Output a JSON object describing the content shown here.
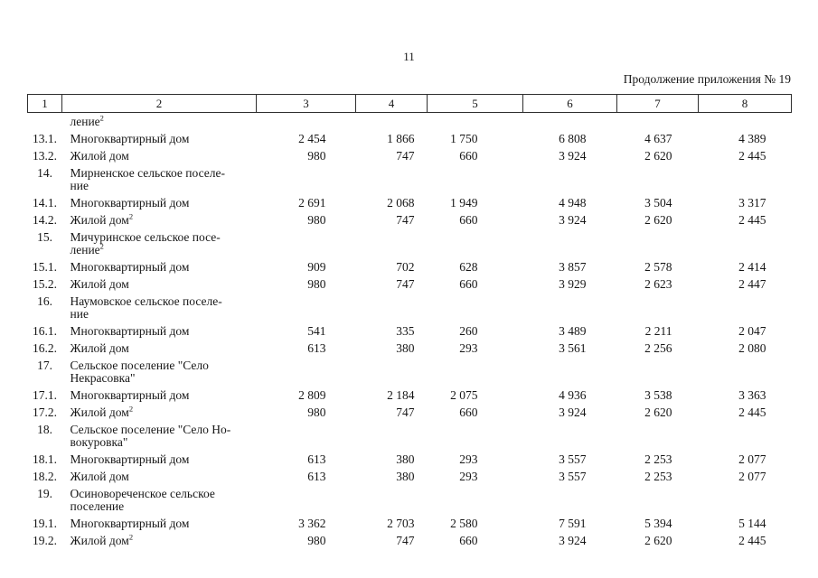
{
  "page": {
    "number": "11",
    "continuation_label": "Продолжение приложения № 19"
  },
  "table": {
    "column_numbers": [
      "1",
      "2",
      "3",
      "4",
      "5",
      "6",
      "7",
      "8"
    ],
    "rows": [
      {
        "num": "",
        "lines": [
          {
            "text": "ление",
            "sup": "2"
          }
        ],
        "values": [
          "",
          "",
          "",
          "",
          "",
          ""
        ]
      },
      {
        "num": "13.1.",
        "lines": [
          {
            "text": "Многоквартирный дом",
            "sup": ""
          }
        ],
        "values": [
          "2 454",
          "1 866",
          "1 750",
          "6 808",
          "4 637",
          "4 389"
        ]
      },
      {
        "num": "13.2.",
        "lines": [
          {
            "text": "Жилой дом",
            "sup": ""
          }
        ],
        "values": [
          "980",
          "747",
          "660",
          "3 924",
          "2 620",
          "2 445"
        ]
      },
      {
        "num": "14.",
        "lines": [
          {
            "text": "Мирненское сельское поселе-",
            "sup": ""
          },
          {
            "text": "ние",
            "sup": ""
          }
        ],
        "values": [
          "",
          "",
          "",
          "",
          "",
          ""
        ]
      },
      {
        "num": "14.1.",
        "lines": [
          {
            "text": "Многоквартирный дом",
            "sup": ""
          }
        ],
        "values": [
          "2 691",
          "2 068",
          "1 949",
          "4 948",
          "3 504",
          "3 317"
        ]
      },
      {
        "num": "14.2.",
        "lines": [
          {
            "text": "Жилой дом",
            "sup": "2"
          }
        ],
        "values": [
          "980",
          "747",
          "660",
          "3 924",
          "2 620",
          "2 445"
        ]
      },
      {
        "num": "15.",
        "lines": [
          {
            "text": "Мичуринское сельское посе-",
            "sup": ""
          },
          {
            "text": "ление",
            "sup": "2"
          }
        ],
        "values": [
          "",
          "",
          "",
          "",
          "",
          ""
        ]
      },
      {
        "num": "15.1.",
        "lines": [
          {
            "text": "Многоквартирный дом",
            "sup": ""
          }
        ],
        "values": [
          "909",
          "702",
          "628",
          "3 857",
          "2 578",
          "2 414"
        ]
      },
      {
        "num": "15.2.",
        "lines": [
          {
            "text": "Жилой дом",
            "sup": ""
          }
        ],
        "values": [
          "980",
          "747",
          "660",
          "3 929",
          "2 623",
          "2 447"
        ]
      },
      {
        "num": "16.",
        "lines": [
          {
            "text": "Наумовское сельское поселе-",
            "sup": ""
          },
          {
            "text": "ние",
            "sup": ""
          }
        ],
        "values": [
          "",
          "",
          "",
          "",
          "",
          ""
        ]
      },
      {
        "num": "16.1.",
        "lines": [
          {
            "text": "Многоквартирный дом",
            "sup": ""
          }
        ],
        "values": [
          "541",
          "335",
          "260",
          "3 489",
          "2 211",
          "2 047"
        ]
      },
      {
        "num": "16.2.",
        "lines": [
          {
            "text": "Жилой дом",
            "sup": ""
          }
        ],
        "values": [
          "613",
          "380",
          "293",
          "3 561",
          "2 256",
          "2 080"
        ]
      },
      {
        "num": "17.",
        "lines": [
          {
            "text": "Сельское поселение \"Село",
            "sup": ""
          },
          {
            "text": "Некрасовка\"",
            "sup": ""
          }
        ],
        "values": [
          "",
          "",
          "",
          "",
          "",
          ""
        ]
      },
      {
        "num": "17.1.",
        "lines": [
          {
            "text": "Многоквартирный дом",
            "sup": ""
          }
        ],
        "values": [
          "2 809",
          "2 184",
          "2 075",
          "4 936",
          "3 538",
          "3 363"
        ]
      },
      {
        "num": "17.2.",
        "lines": [
          {
            "text": "Жилой дом",
            "sup": "2"
          }
        ],
        "values": [
          "980",
          "747",
          "660",
          "3 924",
          "2 620",
          "2 445"
        ]
      },
      {
        "num": "18.",
        "lines": [
          {
            "text": "Сельское поселение \"Село Но-",
            "sup": ""
          },
          {
            "text": "вокуровка\"",
            "sup": ""
          }
        ],
        "values": [
          "",
          "",
          "",
          "",
          "",
          ""
        ]
      },
      {
        "num": "18.1.",
        "lines": [
          {
            "text": "Многоквартирный дом",
            "sup": ""
          }
        ],
        "values": [
          "613",
          "380",
          "293",
          "3 557",
          "2 253",
          "2 077"
        ]
      },
      {
        "num": "18.2.",
        "lines": [
          {
            "text": "Жилой дом",
            "sup": ""
          }
        ],
        "values": [
          "613",
          "380",
          "293",
          "3 557",
          "2 253",
          "2 077"
        ]
      },
      {
        "num": "19.",
        "lines": [
          {
            "text": "Осиновореченское сельское",
            "sup": ""
          },
          {
            "text": "поселение",
            "sup": ""
          }
        ],
        "values": [
          "",
          "",
          "",
          "",
          "",
          ""
        ]
      },
      {
        "num": "19.1.",
        "lines": [
          {
            "text": "Многоквартирный дом",
            "sup": ""
          }
        ],
        "values": [
          "3 362",
          "2 703",
          "2 580",
          "7 591",
          "5 394",
          "5 144"
        ]
      },
      {
        "num": "19.2.",
        "lines": [
          {
            "text": "Жилой дом",
            "sup": "2"
          }
        ],
        "values": [
          "980",
          "747",
          "660",
          "3 924",
          "2 620",
          "2 445"
        ]
      }
    ]
  }
}
